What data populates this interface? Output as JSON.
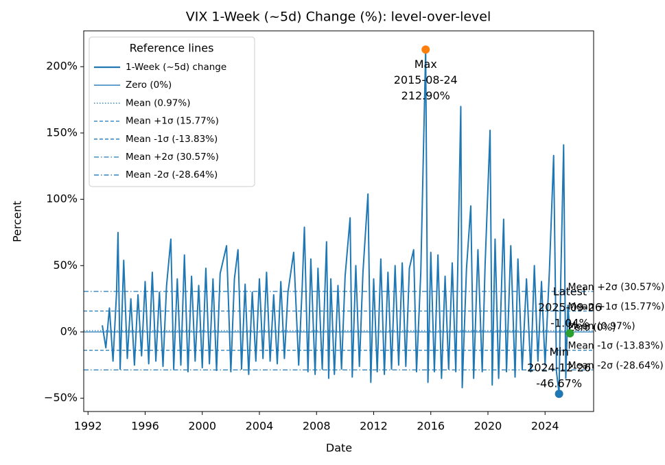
{
  "chart_data": {
    "type": "line",
    "title": "VIX 1-Week (~5d) Change (%): level-over-level",
    "xlabel": "Date",
    "ylabel": "Percent",
    "xlim": [
      1991.7,
      2027.4
    ],
    "xticks": [
      1992,
      1996,
      2000,
      2004,
      2008,
      2012,
      2016,
      2020,
      2024
    ],
    "ylim": [
      -60,
      227
    ],
    "yticks": [
      {
        "value": -50,
        "label": "−50%"
      },
      {
        "value": 0,
        "label": "0%"
      },
      {
        "value": 50,
        "label": "50%"
      },
      {
        "value": 100,
        "label": "100%"
      },
      {
        "value": 150,
        "label": "150%"
      },
      {
        "value": 200,
        "label": "200%"
      }
    ],
    "x": [
      1993.0,
      1993.25,
      1993.5,
      1993.75,
      1994.0,
      1994.1,
      1994.25,
      1994.5,
      1994.75,
      1995.0,
      1995.25,
      1995.5,
      1995.75,
      1996.0,
      1996.25,
      1996.5,
      1996.75,
      1997.0,
      1997.25,
      1997.5,
      1997.8,
      1998.0,
      1998.25,
      1998.5,
      1998.75,
      1999.0,
      1999.25,
      1999.5,
      1999.75,
      2000.0,
      2000.25,
      2000.5,
      2000.75,
      2001.0,
      2001.25,
      2001.7,
      2002.0,
      2002.25,
      2002.5,
      2002.75,
      2003.0,
      2003.25,
      2003.5,
      2003.75,
      2004.0,
      2004.25,
      2004.5,
      2004.75,
      2005.0,
      2005.25,
      2005.5,
      2005.75,
      2006.0,
      2006.4,
      2006.75,
      2007.0,
      2007.15,
      2007.4,
      2007.6,
      2007.9,
      2008.1,
      2008.4,
      2008.7,
      2008.85,
      2009.0,
      2009.25,
      2009.5,
      2009.75,
      2010.0,
      2010.35,
      2010.5,
      2010.75,
      2011.0,
      2011.25,
      2011.6,
      2011.8,
      2012.0,
      2012.25,
      2012.5,
      2012.75,
      2013.0,
      2013.25,
      2013.5,
      2013.75,
      2014.0,
      2014.25,
      2014.5,
      2014.8,
      2015.0,
      2015.3,
      2015.64,
      2015.8,
      2016.0,
      2016.25,
      2016.5,
      2016.75,
      2017.0,
      2017.25,
      2017.5,
      2017.75,
      2018.1,
      2018.2,
      2018.5,
      2018.8,
      2019.0,
      2019.3,
      2019.6,
      2019.8,
      2020.15,
      2020.3,
      2020.5,
      2020.75,
      2021.1,
      2021.3,
      2021.6,
      2021.9,
      2022.1,
      2022.4,
      2022.7,
      2023.0,
      2023.25,
      2023.5,
      2023.75,
      2024.0,
      2024.3,
      2024.6,
      2024.8,
      2024.98,
      2025.1,
      2025.3,
      2025.45,
      2025.6,
      2025.74
    ],
    "series": [
      {
        "name": "1-Week (~5d) change",
        "color": "#1f77b4",
        "values": [
          5,
          -12,
          18,
          -22,
          30,
          75,
          -28,
          54,
          -20,
          25,
          -25,
          28,
          -18,
          38,
          -24,
          45,
          -22,
          30,
          -26,
          35,
          70,
          -28,
          40,
          -25,
          58,
          -30,
          42,
          -22,
          35,
          -27,
          48,
          -24,
          40,
          -29,
          44,
          65,
          -30,
          40,
          62,
          -28,
          36,
          -32,
          30,
          -22,
          40,
          -20,
          45,
          -22,
          28,
          -24,
          38,
          -20,
          30,
          60,
          -25,
          35,
          79,
          -30,
          55,
          -32,
          48,
          -28,
          68,
          -35,
          40,
          -32,
          35,
          -28,
          42,
          86,
          -34,
          50,
          -26,
          45,
          104,
          -38,
          40,
          -30,
          55,
          -32,
          45,
          -28,
          50,
          -25,
          52,
          -26,
          48,
          62,
          -30,
          45,
          212.9,
          -38,
          60,
          -30,
          58,
          -35,
          42,
          -28,
          52,
          -30,
          170,
          -42,
          48,
          95,
          -35,
          62,
          -30,
          50,
          152,
          -40,
          70,
          -35,
          85,
          -30,
          65,
          -34,
          55,
          -28,
          40,
          -30,
          50,
          -22,
          38,
          -25,
          45,
          133,
          -30,
          -46.67,
          40,
          141,
          -35,
          20,
          -1.04
        ]
      }
    ],
    "legend": {
      "title": "Reference lines",
      "position": "upper left"
    },
    "reference_lines": [
      {
        "name": "Zero (0%)",
        "value": 0,
        "style": "solid"
      },
      {
        "name": "Mean (0.97%)",
        "value": 0.97,
        "style": "dotted"
      },
      {
        "name": "Mean +1σ (15.77%)",
        "value": 15.77,
        "style": "dashed"
      },
      {
        "name": "Mean -1σ (-13.83%)",
        "value": -13.83,
        "style": "dashed"
      },
      {
        "name": "Mean +2σ (30.57%)",
        "value": 30.57,
        "style": "dashdot"
      },
      {
        "name": "Mean -2σ (-28.64%)",
        "value": -28.64,
        "style": "dashdot"
      }
    ],
    "annotations": [
      {
        "label": "Max",
        "date": "2015-08-24",
        "x": 2015.64,
        "value": 212.9,
        "value_label": "212.90%",
        "color": "#ff7f0e",
        "position": "below"
      },
      {
        "label": "Min",
        "date": "2024-12-26",
        "x": 2024.98,
        "value": -46.67,
        "value_label": "-46.67%",
        "color": "#1f77b4",
        "position": "above"
      },
      {
        "label": "Latest",
        "date": "2025-09-26",
        "x": 2025.74,
        "value": -1.04,
        "value_label": "-1.04%",
        "color": "#2ca02c",
        "position": "above"
      }
    ]
  }
}
